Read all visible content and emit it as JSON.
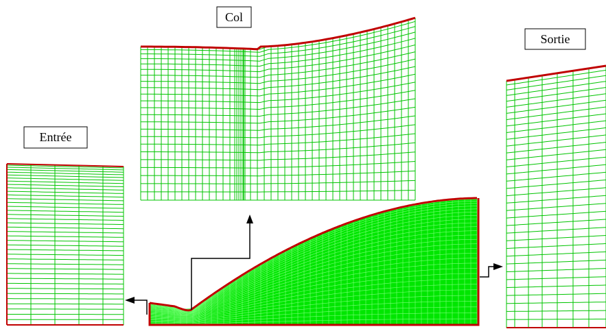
{
  "labels": {
    "col": "Col",
    "sortie": "Sortie",
    "entree": "Entrée"
  },
  "colors": {
    "mesh": "#00c400",
    "mesh_fill": "#00e600",
    "wall": "#c00000",
    "arrow": "#000000"
  }
}
